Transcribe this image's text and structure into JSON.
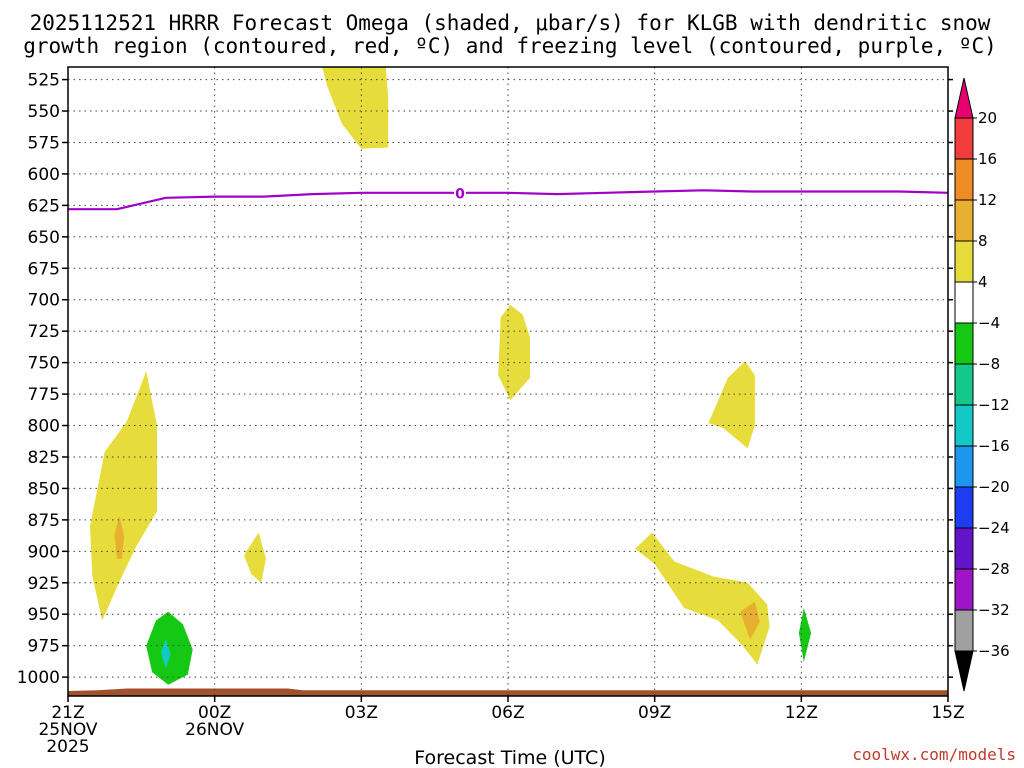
{
  "chart_data": {
    "type": "contour",
    "title": [
      "2025112521 HRRR Forecast Omega (shaded, μbar/s) for KLGB with dendritic snow",
      "growth region (contoured, red, ºC) and freezing level (contoured, purple, ºC)"
    ],
    "xlabel": "Forecast Time (UTC)",
    "ylabel": "",
    "x_ticks": [
      {
        "label": [
          "21Z",
          "25NOV",
          "2025"
        ],
        "hour": 0
      },
      {
        "label": [
          "00Z",
          "26NOV"
        ],
        "hour": 3
      },
      {
        "label": [
          "03Z"
        ],
        "hour": 6
      },
      {
        "label": [
          "06Z"
        ],
        "hour": 9
      },
      {
        "label": [
          "09Z"
        ],
        "hour": 12
      },
      {
        "label": [
          "12Z"
        ],
        "hour": 15
      },
      {
        "label": [
          "15Z"
        ],
        "hour": 18
      }
    ],
    "xlim": [
      0,
      18
    ],
    "y_ticks": [
      "525",
      "550",
      "575",
      "600",
      "625",
      "650",
      "675",
      "700",
      "725",
      "750",
      "775",
      "800",
      "825",
      "850",
      "875",
      "900",
      "925",
      "950",
      "975",
      "1000"
    ],
    "ylim": [
      1015,
      515
    ],
    "grid": true,
    "colorbar": {
      "labels": [
        "20",
        "16",
        "12",
        "8",
        "4",
        "-4",
        "-8",
        "-12",
        "-16",
        "-20",
        "-24",
        "-28",
        "-32",
        "-36"
      ],
      "colors": [
        "#e8006f",
        "#f03c3c",
        "#f08c28",
        "#e8b030",
        "#e6dc3c",
        "#ffffff",
        "#14c814",
        "#14c88c",
        "#14c8c8",
        "#1e96f0",
        "#1e3cf0",
        "#6414c8",
        "#a014c8",
        "#a0a0a0",
        "#000000"
      ]
    },
    "freezing_level": {
      "label": "0",
      "color": "#a000c8",
      "points": [
        [
          0,
          628
        ],
        [
          1,
          628
        ],
        [
          2,
          619
        ],
        [
          3,
          618
        ],
        [
          4,
          618
        ],
        [
          5,
          616
        ],
        [
          6,
          615
        ],
        [
          7,
          615
        ],
        [
          8,
          615
        ],
        [
          9,
          615
        ],
        [
          10,
          616
        ],
        [
          11,
          615
        ],
        [
          12,
          614
        ],
        [
          13,
          613
        ],
        [
          14,
          614
        ],
        [
          15,
          614
        ],
        [
          16,
          614
        ],
        [
          17,
          614
        ],
        [
          18,
          615
        ]
      ]
    },
    "omega_regions": [
      {
        "value": 4,
        "color": "#e6dc3c",
        "points": [
          [
            5.2,
            515
          ],
          [
            6.5,
            515
          ],
          [
            6.55,
            540
          ],
          [
            6.55,
            579
          ],
          [
            6.0,
            580
          ],
          [
            5.6,
            560
          ],
          [
            5.3,
            530
          ]
        ]
      },
      {
        "value": 4,
        "color": "#e6dc3c",
        "points": [
          [
            8.85,
            714
          ],
          [
            9.05,
            704
          ],
          [
            9.3,
            712
          ],
          [
            9.45,
            730
          ],
          [
            9.45,
            762
          ],
          [
            9.05,
            780
          ],
          [
            8.8,
            760
          ]
        ]
      },
      {
        "value": 4,
        "color": "#e6dc3c",
        "points": [
          [
            13.1,
            798
          ],
          [
            13.5,
            762
          ],
          [
            13.85,
            749
          ],
          [
            14.05,
            760
          ],
          [
            14.05,
            800
          ],
          [
            13.9,
            818
          ],
          [
            13.4,
            802
          ]
        ]
      },
      {
        "value": 4,
        "color": "#e6dc3c",
        "points": [
          [
            0.45,
            880
          ],
          [
            0.75,
            821
          ],
          [
            1.2,
            797
          ],
          [
            1.6,
            757
          ],
          [
            1.82,
            800
          ],
          [
            1.82,
            868
          ],
          [
            1.4,
            896
          ],
          [
            1.1,
            920
          ],
          [
            0.7,
            955
          ],
          [
            0.5,
            920
          ]
        ]
      },
      {
        "value": 4,
        "color": "#e6dc3c",
        "points": [
          [
            3.6,
            903
          ],
          [
            3.9,
            885
          ],
          [
            4.05,
            906
          ],
          [
            3.95,
            925
          ],
          [
            3.75,
            918
          ]
        ]
      },
      {
        "value": 4,
        "color": "#e6dc3c",
        "points": [
          [
            11.6,
            898
          ],
          [
            11.95,
            885
          ],
          [
            12.4,
            908
          ],
          [
            13.2,
            920
          ],
          [
            13.9,
            925
          ],
          [
            14.3,
            942
          ],
          [
            14.35,
            960
          ],
          [
            14.1,
            990
          ],
          [
            13.8,
            975
          ],
          [
            13.3,
            955
          ],
          [
            12.6,
            945
          ],
          [
            12.0,
            910
          ]
        ]
      },
      {
        "value": 8,
        "color": "#e8b030",
        "points": [
          [
            0.95,
            887
          ],
          [
            1.05,
            872
          ],
          [
            1.15,
            888
          ],
          [
            1.1,
            906
          ],
          [
            1.0,
            906
          ]
        ]
      },
      {
        "value": 8,
        "color": "#e8b030",
        "points": [
          [
            13.75,
            948
          ],
          [
            14.05,
            940
          ],
          [
            14.15,
            956
          ],
          [
            13.95,
            970
          ]
        ]
      },
      {
        "value": -4,
        "color": "#14c814",
        "points": [
          [
            1.6,
            975
          ],
          [
            1.8,
            955
          ],
          [
            2.05,
            948
          ],
          [
            2.35,
            958
          ],
          [
            2.55,
            978
          ],
          [
            2.45,
            998
          ],
          [
            2.05,
            1006
          ],
          [
            1.72,
            996
          ]
        ]
      },
      {
        "value": -8,
        "color": "#14c8c8",
        "points": [
          [
            1.9,
            980
          ],
          [
            2.0,
            970
          ],
          [
            2.1,
            982
          ],
          [
            2.0,
            993
          ]
        ]
      },
      {
        "value": -4,
        "color": "#14c814",
        "points": [
          [
            14.95,
            965
          ],
          [
            15.05,
            945
          ],
          [
            15.2,
            965
          ],
          [
            15.05,
            988
          ]
        ]
      }
    ],
    "terrain": {
      "color": "#a0522d",
      "points": [
        [
          0,
          1011
        ],
        [
          0.6,
          1010.5
        ],
        [
          1.0,
          1009.5
        ],
        [
          1.2,
          1009
        ],
        [
          4.5,
          1009
        ],
        [
          4.8,
          1010.5
        ],
        [
          18,
          1010.5
        ],
        [
          18,
          1015
        ],
        [
          0,
          1015
        ]
      ]
    }
  },
  "credit": "coolwx.com/models"
}
